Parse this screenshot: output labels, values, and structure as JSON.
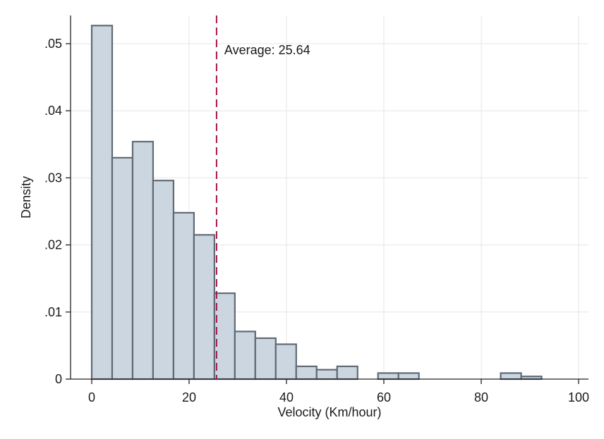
{
  "chart_data": {
    "type": "bar",
    "xlabel": "Velocity (Km/hour)",
    "ylabel": "Density",
    "xlim": [
      0,
      100
    ],
    "ylim": [
      0,
      0.054
    ],
    "x_ticks": [
      0,
      20,
      40,
      60,
      80,
      100
    ],
    "x_tick_labels": [
      "0",
      "20",
      "40",
      "60",
      "80",
      "100"
    ],
    "y_ticks": [
      0,
      0.01,
      0.02,
      0.03,
      0.04,
      0.05
    ],
    "y_tick_labels": [
      "0",
      ".01",
      ".02",
      ".03",
      ".04",
      ".05"
    ],
    "grid": true,
    "bin_width": 4.2,
    "bins": [
      {
        "start": 0.0,
        "value": 0.0527
      },
      {
        "start": 4.2,
        "value": 0.033
      },
      {
        "start": 8.4,
        "value": 0.0354
      },
      {
        "start": 12.6,
        "value": 0.0296
      },
      {
        "start": 16.8,
        "value": 0.0248
      },
      {
        "start": 21.0,
        "value": 0.0215
      },
      {
        "start": 25.2,
        "value": 0.0128
      },
      {
        "start": 29.4,
        "value": 0.0071
      },
      {
        "start": 33.6,
        "value": 0.0061
      },
      {
        "start": 37.8,
        "value": 0.0052
      },
      {
        "start": 42.0,
        "value": 0.0019
      },
      {
        "start": 46.2,
        "value": 0.0014
      },
      {
        "start": 50.4,
        "value": 0.0019
      },
      {
        "start": 58.8,
        "value": 0.0009
      },
      {
        "start": 63.0,
        "value": 0.0009
      },
      {
        "start": 84.0,
        "value": 0.0009
      },
      {
        "start": 88.2,
        "value": 0.0004
      }
    ],
    "reference_line": {
      "x": 25.64,
      "label": "Average: 25.64",
      "color": "#a3174b",
      "style": "dashed"
    },
    "bar_fill": "#cbd6e0",
    "bar_stroke": "#5f6b76"
  }
}
